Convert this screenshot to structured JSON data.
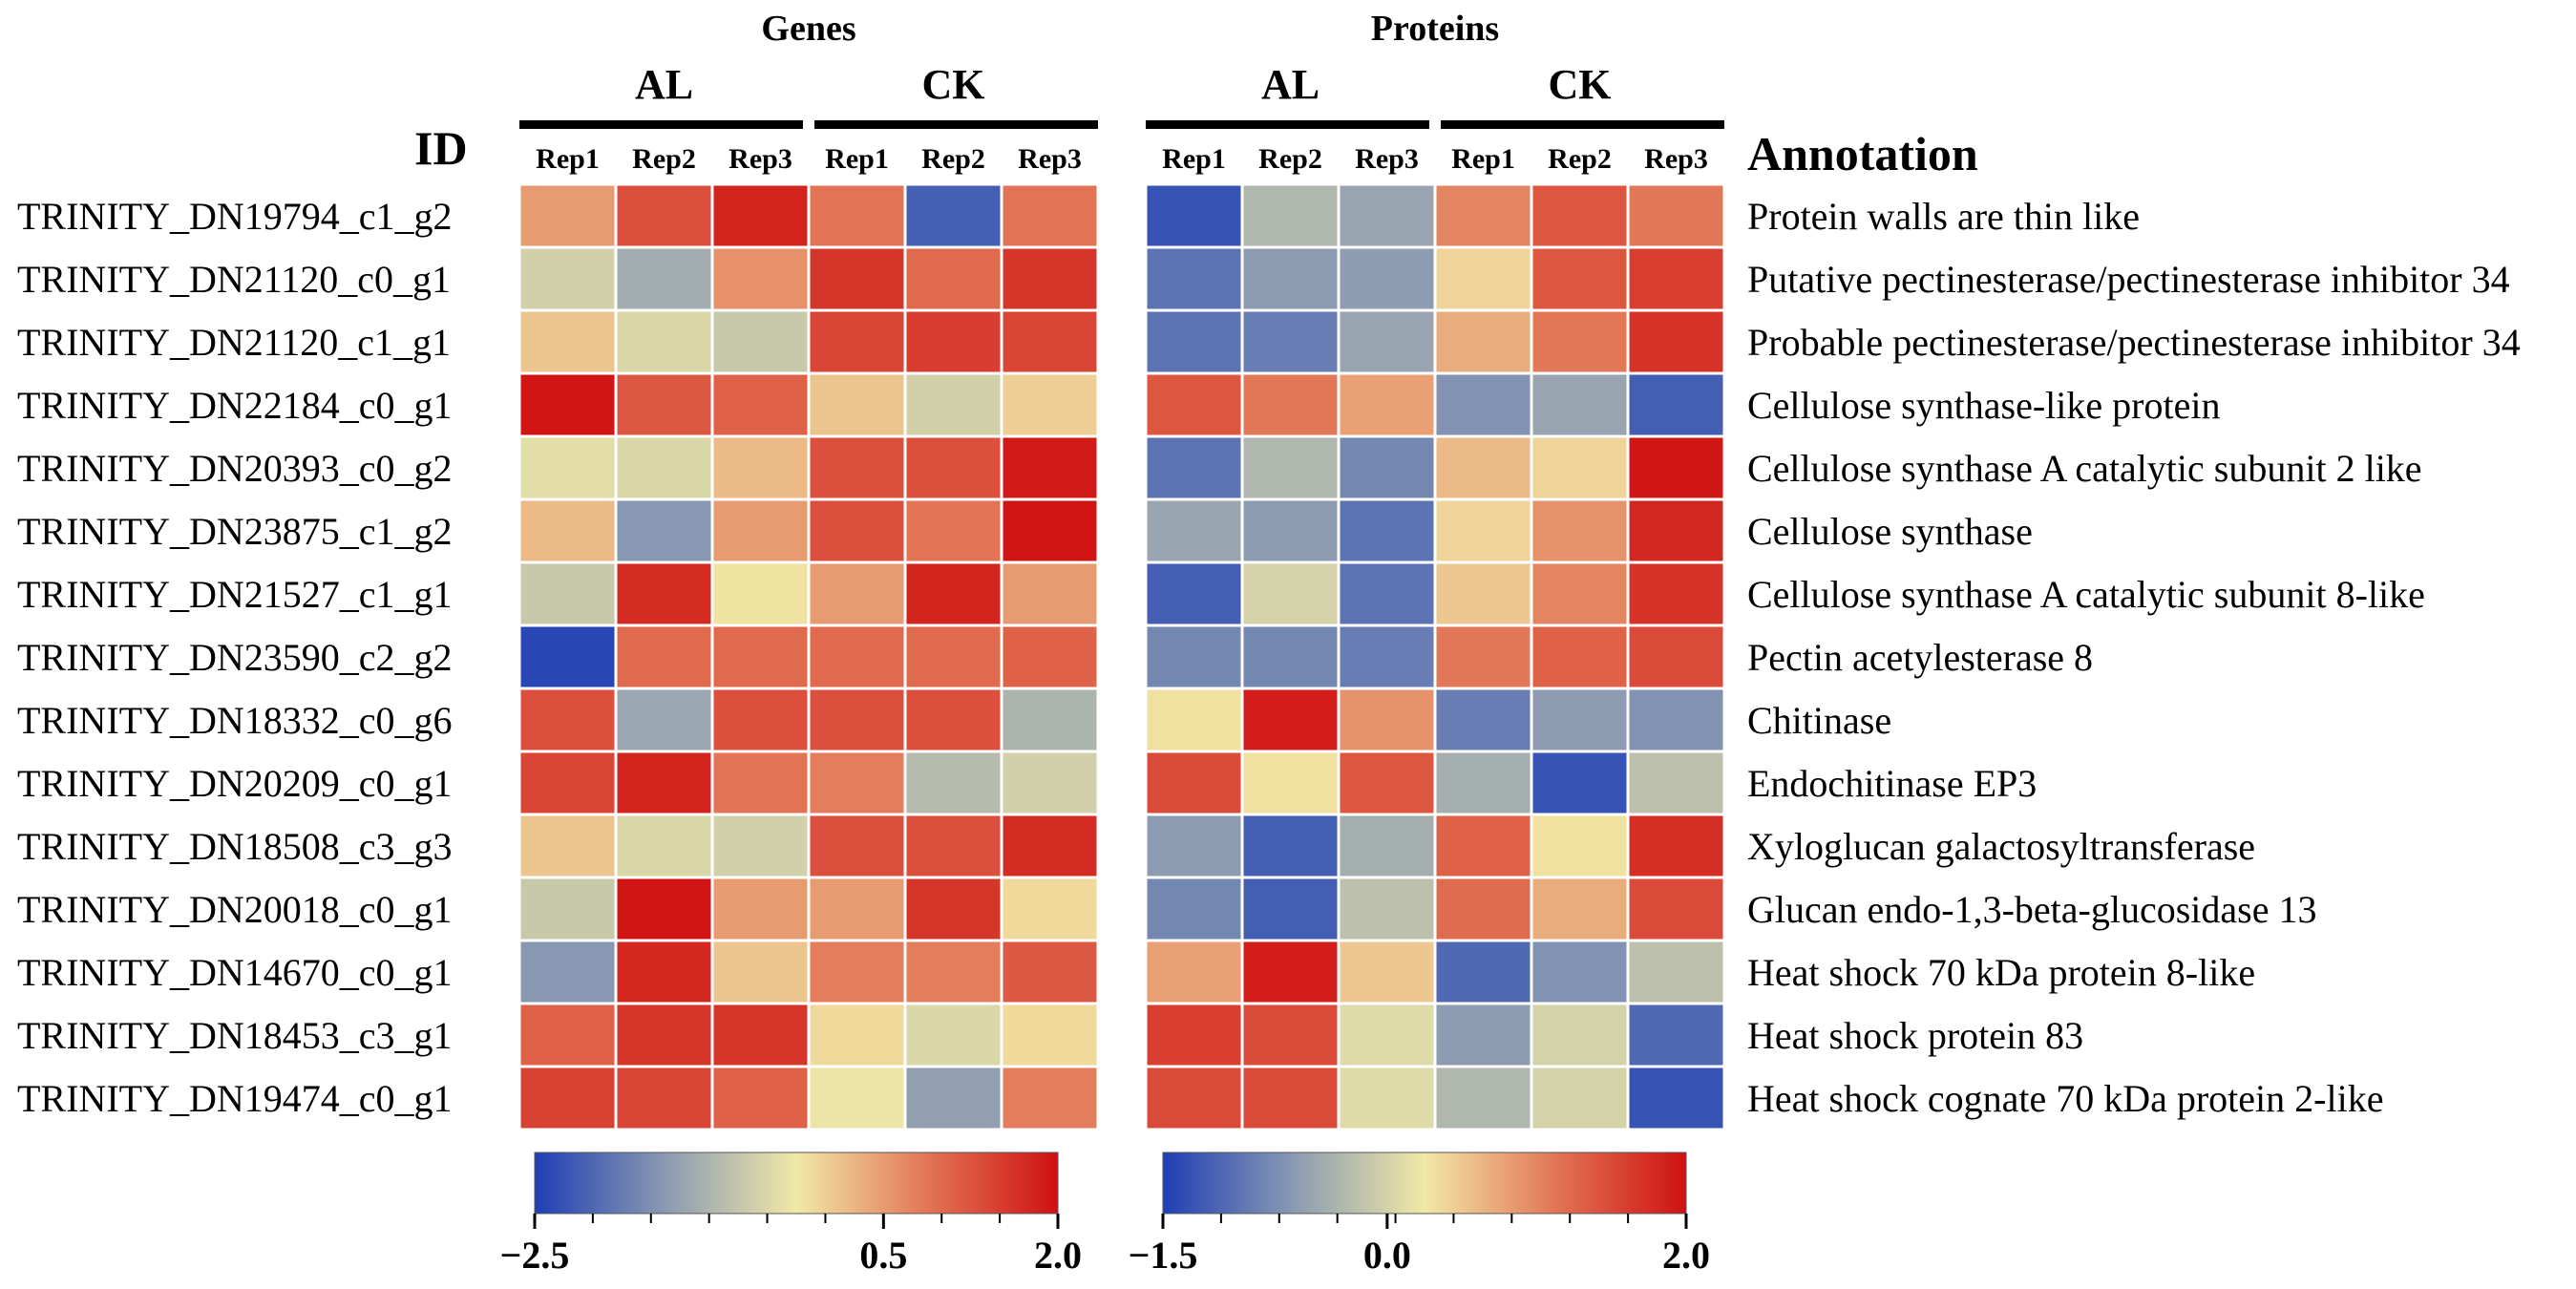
{
  "chart_data": {
    "type": "heatmap",
    "id_header": "ID",
    "annotation_header": "Annotation",
    "row_ids": [
      "TRINITY_DN19794_c1_g2",
      "TRINITY_DN21120_c0_g1",
      "TRINITY_DN21120_c1_g1",
      "TRINITY_DN22184_c0_g1",
      "TRINITY_DN20393_c0_g2",
      "TRINITY_DN23875_c1_g2",
      "TRINITY_DN21527_c1_g1",
      "TRINITY_DN23590_c2_g2",
      "TRINITY_DN18332_c0_g6",
      "TRINITY_DN20209_c0_g1",
      "TRINITY_DN18508_c3_g3",
      "TRINITY_DN20018_c0_g1",
      "TRINITY_DN14670_c0_g1",
      "TRINITY_DN18453_c3_g1",
      "TRINITY_DN19474_c0_g1"
    ],
    "annotations": [
      "Protein walls are thin like",
      "Putative pectinesterase/pectinesterase inhibitor 34",
      "Probable pectinesterase/pectinesterase inhibitor 34",
      "Cellulose synthase-like protein",
      "Cellulose synthase A catalytic subunit 2 like",
      "Cellulose synthase",
      "Cellulose synthase A catalytic subunit 8-like",
      "Pectin acetylesterase 8",
      "Chitinase",
      "Endochitinase EP3",
      "Xyloglucan galactosyltransferase",
      "Glucan endo-1,3-beta-glucosidase 13",
      "Heat shock 70 kDa protein 8-like",
      "Heat shock protein 83",
      "Heat shock cognate 70 kDa protein 2-like"
    ],
    "panels": [
      {
        "title": "Genes",
        "groups": [
          "AL",
          "CK"
        ],
        "columns": [
          "Rep1",
          "Rep2",
          "Rep3",
          "Rep1",
          "Rep2",
          "Rep3"
        ],
        "scale": {
          "min": -2.5,
          "max": 2.0,
          "ticks": [
            -2.5,
            0.5,
            2.0
          ],
          "tick_labels": [
            "−2.5",
            "0.5",
            "2.0"
          ]
        },
        "values": [
          [
            0.5,
            1.3,
            1.8,
            0.9,
            -2.1,
            0.9
          ],
          [
            -0.6,
            -1.1,
            0.6,
            1.6,
            1.0,
            1.6
          ],
          [
            0.1,
            -0.5,
            -0.7,
            1.4,
            1.5,
            1.4
          ],
          [
            1.95,
            1.2,
            1.1,
            0.1,
            -0.6,
            0.0
          ],
          [
            -0.4,
            -0.5,
            0.2,
            1.3,
            1.3,
            1.9
          ],
          [
            0.2,
            -1.4,
            0.5,
            1.3,
            0.9,
            1.95
          ],
          [
            -0.7,
            1.7,
            -0.2,
            0.5,
            1.8,
            0.5
          ],
          [
            -2.4,
            1.0,
            1.0,
            1.0,
            1.0,
            1.1
          ],
          [
            1.3,
            -1.2,
            1.3,
            1.3,
            1.3,
            -1.0
          ],
          [
            1.4,
            1.8,
            0.9,
            0.8,
            -0.9,
            -0.6
          ],
          [
            0.1,
            -0.5,
            -0.6,
            1.3,
            1.3,
            1.7
          ],
          [
            -0.7,
            1.95,
            0.5,
            0.5,
            1.6,
            -0.1
          ],
          [
            -1.4,
            1.75,
            0.1,
            0.8,
            0.8,
            1.2
          ],
          [
            1.1,
            1.6,
            1.6,
            -0.1,
            -0.5,
            -0.1
          ],
          [
            1.45,
            1.4,
            1.1,
            -0.3,
            -1.3,
            0.8
          ]
        ]
      },
      {
        "title": "Proteins",
        "groups": [
          "AL",
          "CK"
        ],
        "columns": [
          "Rep1",
          "Rep2",
          "Rep3",
          "Rep1",
          "Rep2",
          "Rep3"
        ],
        "scale": {
          "min": -1.5,
          "max": 2.0,
          "ticks": [
            -1.5,
            0.0,
            2.0
          ],
          "tick_labels": [
            "−1.5",
            "0.0",
            "2.0"
          ]
        },
        "values": [
          [
            -1.3,
            -0.3,
            -0.5,
            1.0,
            1.4,
            1.1
          ],
          [
            -1.0,
            -0.6,
            -0.6,
            0.4,
            1.4,
            1.6
          ],
          [
            -1.0,
            -0.9,
            -0.5,
            0.7,
            1.1,
            1.7
          ],
          [
            1.4,
            1.1,
            0.8,
            -0.7,
            -0.5,
            -1.2
          ],
          [
            -1.0,
            -0.3,
            -0.8,
            0.6,
            0.4,
            1.95
          ],
          [
            -0.5,
            -0.6,
            -1.0,
            0.4,
            0.9,
            1.8
          ],
          [
            -1.2,
            0.0,
            -1.0,
            0.5,
            1.0,
            1.7
          ],
          [
            -0.8,
            -0.8,
            -0.9,
            1.1,
            1.3,
            1.5
          ],
          [
            0.3,
            1.9,
            0.9,
            -0.9,
            -0.6,
            -0.7
          ],
          [
            1.5,
            0.3,
            1.4,
            -0.4,
            -1.3,
            -0.2
          ],
          [
            -0.6,
            -1.2,
            -0.4,
            1.3,
            0.3,
            1.75
          ],
          [
            -0.8,
            -1.2,
            -0.2,
            1.2,
            0.7,
            1.5
          ],
          [
            0.8,
            1.9,
            0.5,
            -1.1,
            -0.7,
            -0.2
          ],
          [
            1.6,
            1.5,
            0.1,
            -0.6,
            0.0,
            -1.1
          ],
          [
            1.5,
            1.5,
            0.1,
            -0.3,
            0.0,
            -1.3
          ]
        ]
      }
    ],
    "colormap": {
      "stops": [
        {
          "t": 0.0,
          "color": "#1f3fb4"
        },
        {
          "t": 0.25,
          "color": "#8a9ab2"
        },
        {
          "t": 0.5,
          "color": "#f1e8a6"
        },
        {
          "t": 0.75,
          "color": "#e27556"
        },
        {
          "t": 1.0,
          "color": "#cf1111"
        }
      ]
    }
  }
}
